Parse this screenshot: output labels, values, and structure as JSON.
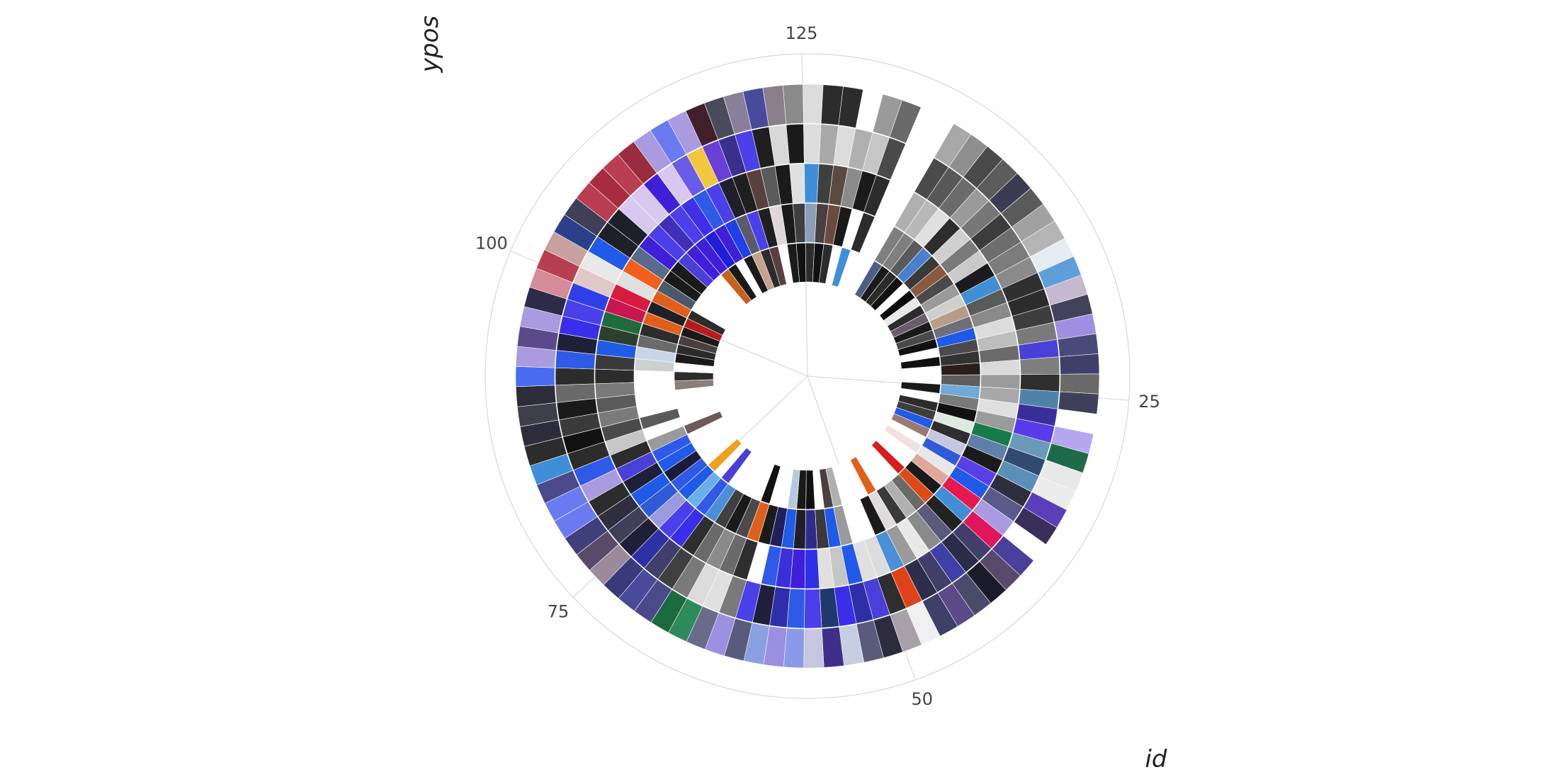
{
  "chart_data": {
    "type": "polar-bar",
    "xlabel": "id",
    "ylabel": "ypos",
    "x_ticks": [
      "25",
      "50",
      "75",
      "100",
      "125"
    ],
    "x_tick_values": [
      25,
      50,
      75,
      100,
      125
    ],
    "x_range": [
      0,
      136
    ],
    "grid": true,
    "segments_per_bar": 5,
    "bars": [
      {
        "id": 1,
        "colors": [
          "#4b5f8a",
          "#7f7f7f",
          "#b0b0b0",
          "#4a4a4a",
          "#a8a8a8"
        ]
      },
      {
        "id": 2,
        "colors": [
          "#1b1b1b",
          "#7f7f7f",
          "#b8b8b8",
          "#585858",
          "#8e8e8e"
        ]
      },
      {
        "id": 3,
        "colors": [
          "#2b2b2b",
          "#5a5a5a",
          "#e0e0e0",
          "#6b6b6b",
          "#4a4a4a"
        ]
      },
      {
        "id": 4,
        "colors": [
          "#111111",
          "#4a7fcf",
          "#2d2d2d",
          "#9a9a9a",
          "#5c5c5c"
        ]
      },
      {
        "id": 5,
        "colors": [
          "#ffffff",
          "#3a3a3a",
          "#cfcfcf",
          "#777777",
          "#3b3b54"
        ]
      },
      {
        "id": 6,
        "colors": [
          "#0b0b0b",
          "#8b5a3c",
          "#7a7a7a",
          "#3c3c3c",
          "#5a5a5a"
        ]
      },
      {
        "id": 7,
        "colors": [
          "#e8e8e8",
          "#4a4a4a",
          "#c9c9c9",
          "#6d6d6d",
          "#a1a1a1"
        ]
      },
      {
        "id": 8,
        "colors": [
          "#2c2c2c",
          "#9a9a9a",
          "#1b1b1b",
          "#7b7b7b",
          "#b4b4b4"
        ]
      },
      {
        "id": 9,
        "colors": [
          "#6b5a6b",
          "#cfcfcf",
          "#3f8ed6",
          "#8a8a8a",
          "#e6ecf3"
        ]
      },
      {
        "id": 10,
        "colors": [
          "#1a1a1a",
          "#b79c8a",
          "#5a5a5a",
          "#2f2f2f",
          "#5e9fd9"
        ]
      },
      {
        "id": 11,
        "colors": [
          "#4a4a4a",
          "#6e6e78",
          "#8a8a8a",
          "#2c2c2c",
          "#c6b8cf"
        ]
      },
      {
        "id": 12,
        "colors": [
          "#111111",
          "#1f5ae8",
          "#dcdcdc",
          "#3e3e3e",
          "#42425c"
        ]
      },
      {
        "id": 13,
        "colors": [
          "#ffffff",
          "#4a4a4a",
          "#bdbdbd",
          "#7a7a7a",
          "#9f8fe0"
        ]
      },
      {
        "id": 14,
        "colors": [
          "#111111",
          "#333333",
          "#6b6b6b",
          "#4a3fd8",
          "#4a4a7a"
        ]
      },
      {
        "id": 15,
        "colors": [
          "#ffffff",
          "#2a1e1a",
          "#dadada",
          "#7f7f7f",
          "#3f3f6a"
        ]
      },
      {
        "id": 16,
        "colors": [
          "#ffffff",
          "#5e5e5e",
          "#9b9b9b",
          "#2e2e2e",
          "#6a6a6a"
        ]
      },
      {
        "id": 17,
        "colors": [
          "#1a1a1a",
          "#6fa9d8",
          "#a8a8a8",
          "#4f82a9",
          "#3f3f5a"
        ]
      },
      {
        "id": 18,
        "colors": [
          "#ffffff",
          "#7a7a7a",
          "#e0e0e0",
          "#3a2f9a",
          "#ffffff"
        ]
      },
      {
        "id": 19,
        "colors": [
          "#2c2c2c",
          "#111111",
          "#9b9b9b",
          "#5a3be8",
          "#b4a6f0"
        ]
      },
      {
        "id": 20,
        "colors": [
          "#3e3e3e",
          "#dfe9df",
          "#177a4a",
          "#6a9ab8",
          "#1d6b49"
        ]
      },
      {
        "id": 21,
        "colors": [
          "#1f5ae8",
          "#2e2e2e",
          "#5f7fa8",
          "#314a70",
          "#e8e8e8"
        ]
      },
      {
        "id": 22,
        "colors": [
          "#9a7a72",
          "#c6c6e0",
          "#1b1b1b",
          "#5b8fb8",
          "#ececec"
        ]
      },
      {
        "id": 23,
        "colors": [
          "#ffffff",
          "#2f5ad8",
          "#5a3fe8",
          "#2e2e3e",
          "#5a3fb8"
        ]
      },
      {
        "id": 24,
        "colors": [
          "#f0e0e0",
          "#e8e8e8",
          "#1f5ae8",
          "#5a5a8a",
          "#3a2f5a"
        ]
      },
      {
        "id": 25,
        "colors": [
          "#ffffff",
          "#e0a89a",
          "#e8174f",
          "#aa9ae0",
          "#ffffff"
        ]
      },
      {
        "id": 26,
        "colors": [
          "#ffffff",
          "#1a1a1a",
          "#3f8fd8",
          "#e0155a",
          "#4a3f9a"
        ]
      },
      {
        "id": 27,
        "colors": [
          "#d81b1b",
          "#e04a17",
          "#222222",
          "#3f3f6a",
          "#5a4a6a"
        ]
      },
      {
        "id": 28,
        "colors": [
          "#ffffff",
          "#6a6a6a",
          "#5a5a7a",
          "#2c2c4a",
          "#1b1b2a"
        ]
      },
      {
        "id": 29,
        "colors": [
          "#ffffff",
          "#b0b0b0",
          "#8a8a8a",
          "#3f3fa8",
          "#4a4a6a"
        ]
      },
      {
        "id": 30,
        "colors": [
          "#ffffff",
          "#3a3a3a",
          "#e8e8e8",
          "#3f3f6a",
          "#5a4a8a"
        ]
      },
      {
        "id": 31,
        "colors": [
          "#e0601b",
          "#e0dcdc",
          "#9a9a9a",
          "#2e2e4a",
          "#3f3f6a"
        ]
      },
      {
        "id": 32,
        "colors": [
          "#ffffff",
          "#1a1a1a",
          "#4a8fd8",
          "#e0411b",
          "#f0f0f0"
        ]
      },
      {
        "id": 33,
        "colors": [
          "#ffffff",
          "#ffffff",
          "#dcdcdc",
          "#2e2e2e",
          "#a8a0a8"
        ]
      },
      {
        "id": 34,
        "colors": [
          "#ffffff",
          "#ffffff",
          "#e0e0e0",
          "#4a3fd8",
          "#2c2c3e"
        ]
      },
      {
        "id": 35,
        "colors": [
          "#b0b0b0",
          "#9a9a9a",
          "#1f5ae8",
          "#2e2ea8",
          "#5a5a7a"
        ]
      },
      {
        "id": 36,
        "colors": [
          "#4a3f3f",
          "#1f5ae8",
          "#c6c6c6",
          "#3a2fe8",
          "#c6cee0"
        ]
      },
      {
        "id": 37,
        "colors": [
          "#ffffff",
          "#3a3a3a",
          "#e0e0e0",
          "#1f3a6a",
          "#3f2f8a"
        ]
      },
      {
        "id": 38,
        "colors": [
          "#111111",
          "#2c2c8a",
          "#2f2fe8",
          "#4a3fe8",
          "#c6c6e0"
        ]
      },
      {
        "id": 39,
        "colors": [
          "#1a1a1a",
          "#1f1f2a",
          "#3f1fd8",
          "#2f5ae8",
          "#8a9ae8"
        ]
      },
      {
        "id": 40,
        "colors": [
          "#b8c8e0",
          "#1f5ae8",
          "#3a2fd8",
          "#2e2ea8",
          "#9a8fe0"
        ]
      },
      {
        "id": 41,
        "colors": [
          "#ffffff",
          "#1f1f5a",
          "#2f5ae8",
          "#1f1f3a",
          "#8aa0e0"
        ]
      },
      {
        "id": 42,
        "colors": [
          "#ffffff",
          "#1a1a1a",
          "#ffffff",
          "#4a3fe8",
          "#5a5a7a"
        ]
      },
      {
        "id": 43,
        "colors": [
          "#111111",
          "#e0601b",
          "#2e2e2e",
          "#7a7a7a",
          "#9a8fe0"
        ]
      },
      {
        "id": 44,
        "colors": [
          "#ffffff",
          "#4a4a4a",
          "#6a6a6a",
          "#e0e0e0",
          "#6a6a8a"
        ]
      },
      {
        "id": 45,
        "colors": [
          "#ffffff",
          "#1a1a1a",
          "#8a8a8a",
          "#dcdcdc",
          "#2e8a5a"
        ]
      },
      {
        "id": 46,
        "colors": [
          "#ffffff",
          "#3f3f3f",
          "#6a6a6a",
          "#7a7a7a",
          "#1b6b3f"
        ]
      },
      {
        "id": 47,
        "colors": [
          "#ffffff",
          "#4a8fd8",
          "#2e2e2e",
          "#3f3f3f",
          "#4a4a8a"
        ]
      },
      {
        "id": 48,
        "colors": [
          "#4a3fd8",
          "#2f5ae8",
          "#3a2fe8",
          "#3f3f6a",
          "#4a4a9a"
        ]
      },
      {
        "id": 49,
        "colors": [
          "#ffffff",
          "#6ab0e8",
          "#4a3fe8",
          "#2f2fa8",
          "#3a3a7a"
        ]
      },
      {
        "id": 50,
        "colors": [
          "#f0a01b",
          "#1f5ae8",
          "#9a9ae0",
          "#1f1f3a",
          "#9a8a9a"
        ]
      },
      {
        "id": 51,
        "colors": [
          "#ffffff",
          "#2f5ae8",
          "#2f5ad8",
          "#3f3f5a",
          "#5a4a6a"
        ]
      },
      {
        "id": 52,
        "colors": [
          "#ffffff",
          "#1a1a3a",
          "#1f5ae8",
          "#2e2e3e",
          "#3f3f7a"
        ]
      },
      {
        "id": 53,
        "colors": [
          "#ffffff",
          "#1f5ae8",
          "#1f1f3a",
          "#2c2c2c",
          "#6a7af0"
        ]
      },
      {
        "id": 54,
        "colors": [
          "#ffffff",
          "#2f5ae8",
          "#4a3fd8",
          "#aa9ae0",
          "#6a7af0"
        ]
      },
      {
        "id": 55,
        "colors": [
          "#6a5a5a",
          "#9a9a9a",
          "#2c2c2c",
          "#2f5ae8",
          "#4a4a8a"
        ]
      },
      {
        "id": 56,
        "colors": [
          "#ffffff",
          "#ffffff",
          "#c6c6c6",
          "#2c2c2c",
          "#3f8fd8"
        ]
      },
      {
        "id": 57,
        "colors": [
          "#ffffff",
          "#5a5a5a",
          "#4a4a4a",
          "#111111",
          "#2c2c2c"
        ]
      },
      {
        "id": 58,
        "colors": [
          "#ffffff",
          "#ffffff",
          "#7a7a7a",
          "#3a3a3a",
          "#2c2c3a"
        ]
      },
      {
        "id": 59,
        "colors": [
          "#ffffff",
          "#ffffff",
          "#5a5a5a",
          "#1a1a1a",
          "#3f3f4a"
        ]
      },
      {
        "id": 60,
        "colors": [
          "#8a7f7a",
          "#ffffff",
          "#7a7a7a",
          "#6a6a6a",
          "#2c2c3a"
        ]
      },
      {
        "id": 61,
        "colors": [
          "#2c2c2c",
          "#ffffff",
          "#2c2c2c",
          "#2c2c2c",
          "#4a6af0"
        ]
      },
      {
        "id": 62,
        "colors": [
          "#ffffff",
          "#cfcfcf",
          "#3a3a3a",
          "#2f5ae8",
          "#aa9ae0"
        ]
      },
      {
        "id": 63,
        "colors": [
          "#1a1a1a",
          "#c6d6e8",
          "#1f5ae8",
          "#1f1f3a",
          "#5a4a8a"
        ]
      },
      {
        "id": 64,
        "colors": [
          "#2c2c2c",
          "#6a6a6a",
          "#2c3f2c",
          "#3a2fe8",
          "#aa9ae0"
        ]
      },
      {
        "id": 65,
        "colors": [
          "#4a3f3f",
          "#2c2c2c",
          "#1f6b3f",
          "#4a3fe8",
          "#2c2c4a"
        ]
      },
      {
        "id": 66,
        "colors": [
          "#1a1a1a",
          "#e0601b",
          "#c8174f",
          "#2f3fe8",
          "#d68a9a"
        ]
      },
      {
        "id": 67,
        "colors": [
          "#b81b1b",
          "#1f1f2a",
          "#d81b3f",
          "#e0c8c8",
          "#b83f4f"
        ]
      },
      {
        "id": 68,
        "colors": [
          "#2c2c2c",
          "#e0601b",
          "#e0e0e0",
          "#e8e8e8",
          "#c8a0a0"
        ]
      },
      {
        "id": 69,
        "colors": [
          "#ffffff",
          "#4a5a6a",
          "#f0601b",
          "#1f5ae8",
          "#2c3f8a"
        ]
      },
      {
        "id": 70,
        "colors": [
          "#ffffff",
          "#1a1a1a",
          "#5a6a8a",
          "#1f1f2a",
          "#3f3f5a"
        ]
      },
      {
        "id": 71,
        "colors": [
          "#ffffff",
          "#1a1a1a",
          "#3f1fd8",
          "#1f1f2a",
          "#b83f4f"
        ]
      },
      {
        "id": 72,
        "colors": [
          "#ffffff",
          "#4a3fd8",
          "#4a3fe8",
          "#d8c8f0",
          "#a82c3f"
        ]
      },
      {
        "id": 73,
        "colors": [
          "#ffffff",
          "#3f1fd8",
          "#3f2fb8",
          "#d8c8f0",
          "#b83f4f"
        ]
      },
      {
        "id": 74,
        "colors": [
          "#c8601b",
          "#3f1fd8",
          "#4a3fe8",
          "#3f1fd8",
          "#9a2c3f"
        ]
      },
      {
        "id": 75,
        "colors": [
          "#1a1a1a",
          "#1f1fd8",
          "#3f2fe8",
          "#d8c8f0",
          "#aa9ae0"
        ]
      },
      {
        "id": 76,
        "colors": [
          "#ffffff",
          "#3f1fd8",
          "#2f5ae8",
          "#6a5ae8",
          "#6a7af0"
        ]
      },
      {
        "id": 77,
        "colors": [
          "#1a1a1a",
          "#1f3fe8",
          "#4a3fe8",
          "#f0c83f",
          "#aa9ae0"
        ]
      },
      {
        "id": 78,
        "colors": [
          "#c8a08a",
          "#5a5a6a",
          "#1f1f2a",
          "#6a3fd8",
          "#3f1f2a"
        ]
      },
      {
        "id": 79,
        "colors": [
          "#2c2c2c",
          "#4a3fe8",
          "#1f1f1f",
          "#3a2f8a",
          "#4a4a5a"
        ]
      },
      {
        "id": 80,
        "colors": [
          "#5a3f3f",
          "#1f1f1f",
          "#5a3f3f",
          "#4a3fe8",
          "#8a7f9a"
        ]
      },
      {
        "id": 81,
        "colors": [
          "#ffffff",
          "#e0d8d8",
          "#5a5a5a",
          "#1f1f1f",
          "#4a4a9a"
        ]
      },
      {
        "id": 82,
        "colors": [
          "#1a1a1a",
          "#1a1a1a",
          "#1a1a1a",
          "#d8d8d8",
          "#8a7f8a"
        ]
      },
      {
        "id": 83,
        "colors": [
          "#111111",
          "#3f3f3f",
          "#e0e0e0",
          "#1a1a1a",
          "#8a8a8a"
        ]
      },
      {
        "id": 84,
        "colors": [
          "#2c2c2c",
          "#8aa0b8",
          "#3f8fd8",
          "#dcdcdc",
          "#dcdcdc"
        ]
      },
      {
        "id": 85,
        "colors": [
          "#111111",
          "#4a3f3f",
          "#3f3f3f",
          "#a8a8a8",
          "#2c2c2c"
        ]
      },
      {
        "id": 86,
        "colors": [
          "#2c2c2c",
          "#6a4a3f",
          "#5a4a3f",
          "#dcdcdc",
          "#2c2c2c"
        ]
      },
      {
        "id": 87,
        "colors": [
          "#ffffff",
          "#1a1a1a",
          "#8a8a8a",
          "#b0b0b0",
          "#ffffff"
        ]
      },
      {
        "id": 88,
        "colors": [
          "#3f8fd8",
          "#ffffff",
          "#1a1a1a",
          "#c6c6c6",
          "#9a9a9a"
        ]
      },
      {
        "id": 89,
        "colors": [
          "#ffffff",
          "#2c2c2c",
          "#2c2c2c",
          "#4a4a4a",
          "#6a6a6a"
        ]
      }
    ]
  }
}
